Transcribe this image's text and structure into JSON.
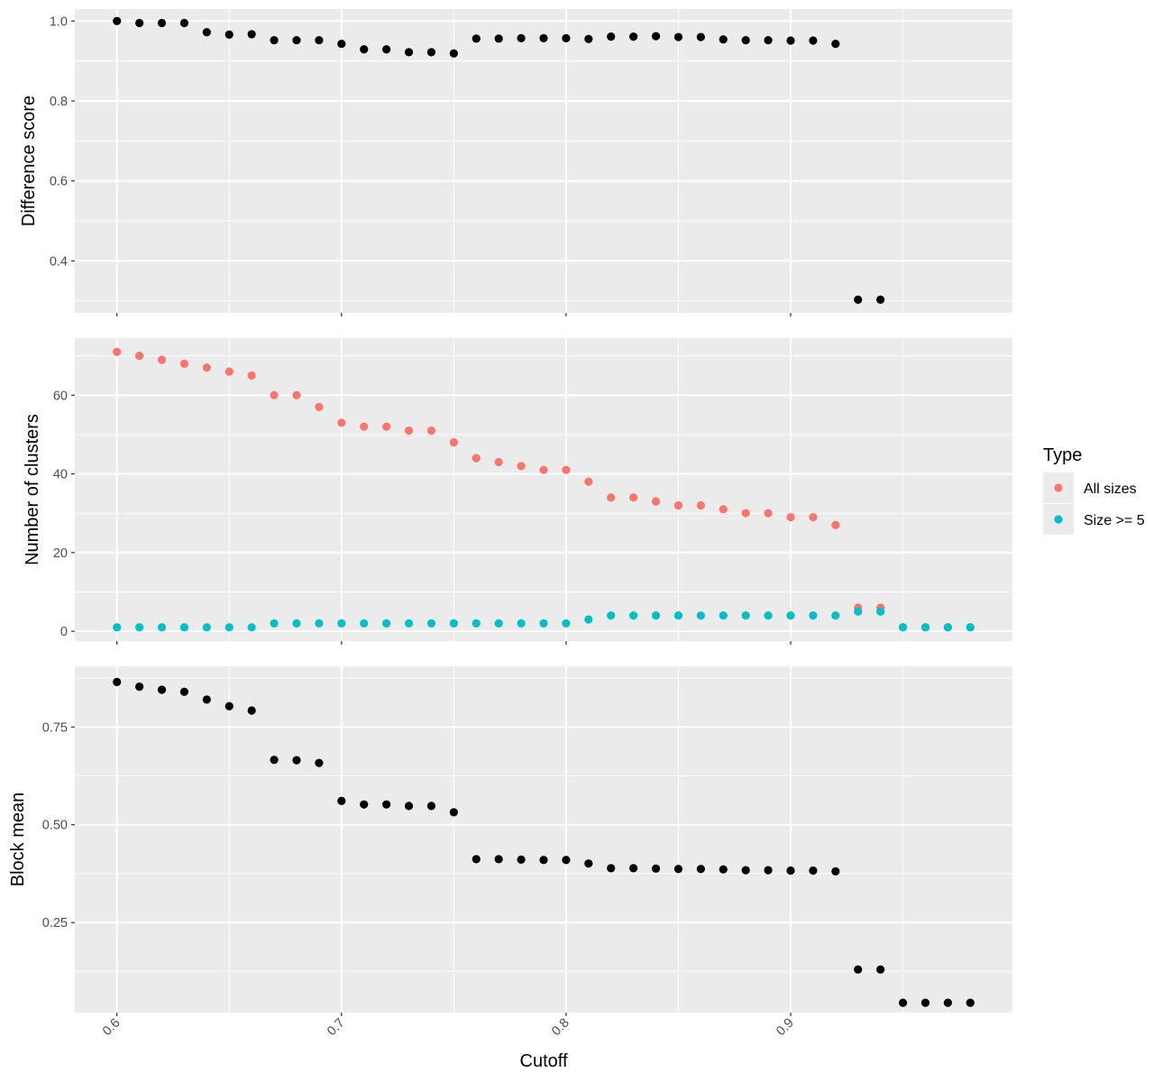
{
  "chart_data": [
    {
      "type": "scatter",
      "ylabel": "Difference score",
      "ylim": [
        0.27,
        1.03
      ],
      "yticks": [
        0.4,
        0.6,
        0.8,
        1.0
      ],
      "ytick_labels": [
        "0.4",
        "0.6",
        "0.8",
        "1.0"
      ],
      "y_minor": [
        0.3,
        0.5,
        0.7,
        0.9
      ],
      "point_color": "#000000",
      "series": [
        {
          "x": [
            0.6,
            0.61,
            0.62,
            0.63,
            0.64,
            0.65,
            0.66,
            0.67,
            0.68,
            0.69,
            0.7,
            0.71,
            0.72,
            0.73,
            0.74,
            0.75,
            0.76,
            0.77,
            0.78,
            0.79,
            0.8,
            0.81,
            0.82,
            0.83,
            0.84,
            0.85,
            0.86,
            0.87,
            0.88,
            0.89,
            0.9,
            0.91,
            0.92,
            0.93,
            0.94
          ],
          "y": [
            1.0,
            0.995,
            0.995,
            0.995,
            0.972,
            0.966,
            0.967,
            0.952,
            0.952,
            0.952,
            0.943,
            0.929,
            0.929,
            0.922,
            0.922,
            0.919,
            0.956,
            0.956,
            0.957,
            0.957,
            0.957,
            0.955,
            0.961,
            0.961,
            0.962,
            0.96,
            0.96,
            0.954,
            0.952,
            0.952,
            0.951,
            0.951,
            0.943,
            0.303,
            0.303
          ]
        }
      ]
    },
    {
      "type": "scatter",
      "ylabel": "Number of clusters",
      "ylim": [
        -2.5,
        74.5
      ],
      "yticks": [
        0,
        20,
        40,
        60
      ],
      "ytick_labels": [
        "0",
        "20",
        "40",
        "60"
      ],
      "y_minor": [
        10,
        30,
        50,
        70
      ],
      "series": [
        {
          "name": "All sizes",
          "color": "#F8766D",
          "x": [
            0.6,
            0.61,
            0.62,
            0.63,
            0.64,
            0.65,
            0.66,
            0.67,
            0.68,
            0.69,
            0.7,
            0.71,
            0.72,
            0.73,
            0.74,
            0.75,
            0.76,
            0.77,
            0.78,
            0.79,
            0.8,
            0.81,
            0.82,
            0.83,
            0.84,
            0.85,
            0.86,
            0.87,
            0.88,
            0.89,
            0.9,
            0.91,
            0.92,
            0.93,
            0.94,
            0.95,
            0.96,
            0.97,
            0.98
          ],
          "y": [
            71,
            70,
            69,
            68,
            67,
            66,
            65,
            60,
            60,
            57,
            53,
            52,
            52,
            51,
            51,
            48,
            44,
            43,
            42,
            41,
            41,
            38,
            34,
            34,
            33,
            32,
            32,
            31,
            30,
            30,
            29,
            29,
            27,
            6,
            6,
            1,
            1,
            1,
            1
          ]
        },
        {
          "name": "Size >= 5",
          "color": "#00BFC4",
          "x": [
            0.6,
            0.61,
            0.62,
            0.63,
            0.64,
            0.65,
            0.66,
            0.67,
            0.68,
            0.69,
            0.7,
            0.71,
            0.72,
            0.73,
            0.74,
            0.75,
            0.76,
            0.77,
            0.78,
            0.79,
            0.8,
            0.81,
            0.82,
            0.83,
            0.84,
            0.85,
            0.86,
            0.87,
            0.88,
            0.89,
            0.9,
            0.91,
            0.92,
            0.93,
            0.94,
            0.95,
            0.96,
            0.97,
            0.98
          ],
          "y": [
            1,
            1,
            1,
            1,
            1,
            1,
            1,
            2,
            2,
            2,
            2,
            2,
            2,
            2,
            2,
            2,
            2,
            2,
            2,
            2,
            2,
            3,
            4,
            4,
            4,
            4,
            4,
            4,
            4,
            4,
            4,
            4,
            4,
            5,
            5,
            1,
            1,
            1,
            1
          ]
        }
      ]
    },
    {
      "type": "scatter",
      "ylabel": "Block mean",
      "xlabel": "Cutoff",
      "ylim": [
        0.02,
        0.905
      ],
      "yticks": [
        0.25,
        0.5,
        0.75
      ],
      "ytick_labels": [
        "0.25",
        "0.50",
        "0.75"
      ],
      "y_minor": [
        0.125,
        0.375,
        0.625,
        0.875
      ],
      "point_color": "#000000",
      "series": [
        {
          "x": [
            0.6,
            0.61,
            0.62,
            0.63,
            0.64,
            0.65,
            0.66,
            0.67,
            0.68,
            0.69,
            0.7,
            0.71,
            0.72,
            0.73,
            0.74,
            0.75,
            0.76,
            0.77,
            0.78,
            0.79,
            0.8,
            0.81,
            0.82,
            0.83,
            0.84,
            0.85,
            0.86,
            0.87,
            0.88,
            0.89,
            0.9,
            0.91,
            0.92,
            0.93,
            0.94,
            0.95,
            0.96,
            0.97,
            0.98
          ],
          "y": [
            0.865,
            0.853,
            0.845,
            0.84,
            0.82,
            0.803,
            0.792,
            0.666,
            0.665,
            0.658,
            0.561,
            0.552,
            0.552,
            0.548,
            0.548,
            0.532,
            0.412,
            0.412,
            0.411,
            0.41,
            0.41,
            0.401,
            0.389,
            0.389,
            0.388,
            0.387,
            0.387,
            0.386,
            0.384,
            0.384,
            0.383,
            0.383,
            0.381,
            0.13,
            0.13,
            0.045,
            0.045,
            0.045,
            0.045
          ]
        }
      ]
    }
  ],
  "x_axis": {
    "xlim": [
      0.58125,
      0.99875
    ],
    "ticks": [
      0.6,
      0.7,
      0.8,
      0.9
    ],
    "tick_labels": [
      "0.6",
      "0.7",
      "0.8",
      "0.9"
    ],
    "minor": [
      0.65,
      0.75,
      0.85,
      0.95
    ]
  },
  "legend": {
    "title": "Type",
    "items": [
      "All sizes",
      "Size >= 5"
    ],
    "colors": [
      "#F8766D",
      "#00BFC4"
    ],
    "placement": "right"
  },
  "theme": {
    "panel_background": "#EBEBEB",
    "grid_color": "#FFFFFF",
    "axis_text_color": "#4D4D4D",
    "tick_color": "#333333"
  }
}
